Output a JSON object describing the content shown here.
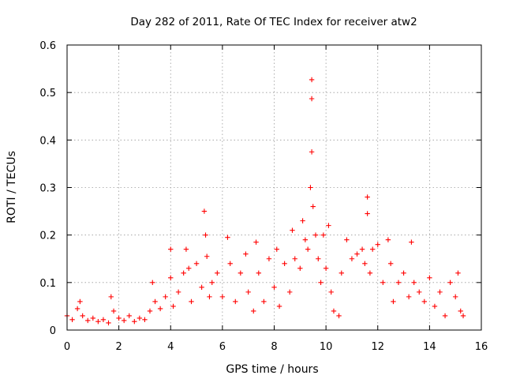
{
  "chart_data": {
    "type": "scatter",
    "title": "Day 282 of 2011, Rate Of TEC Index for receiver atw2",
    "xlabel": "GPS time / hours",
    "ylabel": "ROTI / TECUs",
    "xlim": [
      0,
      16
    ],
    "ylim": [
      0,
      0.6
    ],
    "xticks": [
      "0",
      "2",
      "4",
      "6",
      "8",
      "10",
      "12",
      "14",
      "16"
    ],
    "yticks": [
      "0",
      "0.1",
      "0.2",
      "0.3",
      "0.4",
      "0.5",
      "0.6"
    ],
    "grid": true,
    "marker": "plus",
    "color": "#ff0000",
    "series": [
      {
        "points": [
          [
            0.0,
            0.03
          ],
          [
            0.2,
            0.022
          ],
          [
            0.4,
            0.045
          ],
          [
            0.5,
            0.06
          ],
          [
            0.6,
            0.03
          ],
          [
            0.8,
            0.02
          ],
          [
            1.0,
            0.025
          ],
          [
            1.2,
            0.018
          ],
          [
            1.4,
            0.022
          ],
          [
            1.6,
            0.015
          ],
          [
            1.7,
            0.07
          ],
          [
            1.8,
            0.04
          ],
          [
            2.0,
            0.025
          ],
          [
            2.2,
            0.02
          ],
          [
            2.4,
            0.03
          ],
          [
            2.6,
            0.018
          ],
          [
            2.8,
            0.025
          ],
          [
            3.0,
            0.022
          ],
          [
            3.2,
            0.04
          ],
          [
            3.3,
            0.1
          ],
          [
            3.4,
            0.06
          ],
          [
            3.6,
            0.045
          ],
          [
            3.8,
            0.07
          ],
          [
            4.0,
            0.17
          ],
          [
            4.0,
            0.11
          ],
          [
            4.1,
            0.05
          ],
          [
            4.3,
            0.08
          ],
          [
            4.5,
            0.12
          ],
          [
            4.6,
            0.17
          ],
          [
            4.7,
            0.13
          ],
          [
            4.8,
            0.06
          ],
          [
            5.0,
            0.14
          ],
          [
            5.2,
            0.09
          ],
          [
            5.3,
            0.25
          ],
          [
            5.35,
            0.2
          ],
          [
            5.4,
            0.155
          ],
          [
            5.5,
            0.07
          ],
          [
            5.6,
            0.1
          ],
          [
            5.8,
            0.12
          ],
          [
            6.0,
            0.07
          ],
          [
            6.2,
            0.195
          ],
          [
            6.3,
            0.14
          ],
          [
            6.5,
            0.06
          ],
          [
            6.7,
            0.12
          ],
          [
            6.9,
            0.16
          ],
          [
            7.0,
            0.08
          ],
          [
            7.2,
            0.04
          ],
          [
            7.3,
            0.185
          ],
          [
            7.4,
            0.12
          ],
          [
            7.6,
            0.06
          ],
          [
            7.8,
            0.15
          ],
          [
            8.0,
            0.09
          ],
          [
            8.1,
            0.17
          ],
          [
            8.2,
            0.05
          ],
          [
            8.4,
            0.14
          ],
          [
            8.6,
            0.08
          ],
          [
            8.7,
            0.21
          ],
          [
            8.8,
            0.15
          ],
          [
            9.0,
            0.13
          ],
          [
            9.1,
            0.23
          ],
          [
            9.2,
            0.19
          ],
          [
            9.3,
            0.17
          ],
          [
            9.4,
            0.3
          ],
          [
            9.45,
            0.527
          ],
          [
            9.45,
            0.487
          ],
          [
            9.45,
            0.375
          ],
          [
            9.5,
            0.26
          ],
          [
            9.6,
            0.2
          ],
          [
            9.7,
            0.15
          ],
          [
            9.8,
            0.1
          ],
          [
            9.9,
            0.2
          ],
          [
            10.0,
            0.13
          ],
          [
            10.1,
            0.22
          ],
          [
            10.2,
            0.08
          ],
          [
            10.3,
            0.04
          ],
          [
            10.5,
            0.03
          ],
          [
            10.6,
            0.12
          ],
          [
            10.8,
            0.19
          ],
          [
            11.0,
            0.15
          ],
          [
            11.2,
            0.16
          ],
          [
            11.4,
            0.17
          ],
          [
            11.5,
            0.14
          ],
          [
            11.6,
            0.28
          ],
          [
            11.6,
            0.245
          ],
          [
            11.7,
            0.12
          ],
          [
            11.8,
            0.17
          ],
          [
            12.0,
            0.18
          ],
          [
            12.2,
            0.1
          ],
          [
            12.4,
            0.19
          ],
          [
            12.5,
            0.14
          ],
          [
            12.6,
            0.06
          ],
          [
            12.8,
            0.1
          ],
          [
            13.0,
            0.12
          ],
          [
            13.2,
            0.07
          ],
          [
            13.3,
            0.185
          ],
          [
            13.4,
            0.1
          ],
          [
            13.6,
            0.08
          ],
          [
            13.8,
            0.06
          ],
          [
            14.0,
            0.11
          ],
          [
            14.2,
            0.05
          ],
          [
            14.4,
            0.08
          ],
          [
            14.6,
            0.03
          ],
          [
            14.8,
            0.1
          ],
          [
            15.0,
            0.07
          ],
          [
            15.1,
            0.12
          ],
          [
            15.2,
            0.04
          ],
          [
            15.3,
            0.03
          ]
        ]
      }
    ]
  }
}
